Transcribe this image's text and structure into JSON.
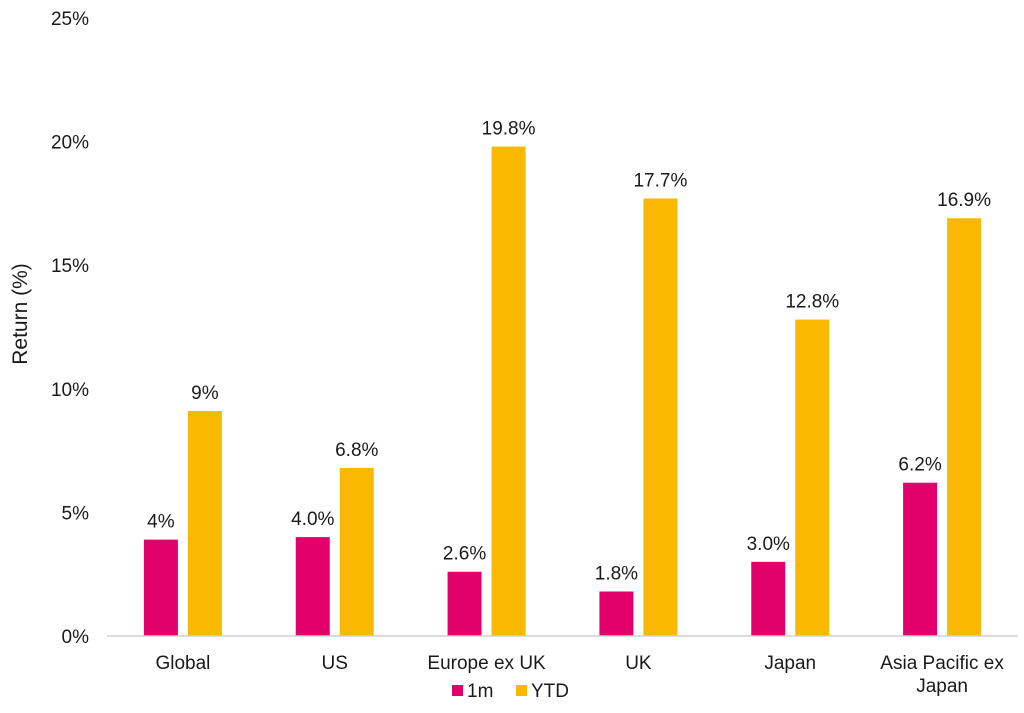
{
  "chart_data": {
    "type": "bar",
    "title": "",
    "xlabel": "",
    "ylabel": "Return (%)",
    "ylim": [
      0,
      25
    ],
    "yticks": [
      0,
      5,
      10,
      15,
      20,
      25
    ],
    "ytick_labels": [
      "0%",
      "5%",
      "10%",
      "15%",
      "20%",
      "25%"
    ],
    "grid": false,
    "legend_position": "bottom",
    "categories": [
      [
        "Global"
      ],
      [
        "US"
      ],
      [
        "Europe ex UK"
      ],
      [
        "UK"
      ],
      [
        "Japan"
      ],
      [
        "Asia Pacific ex",
        "Japan"
      ]
    ],
    "series": [
      {
        "name": "1m",
        "color": "#E2006A",
        "values": [
          3.9,
          4.0,
          2.6,
          1.8,
          3.0,
          6.2
        ],
        "labels": [
          "4%",
          "4.0%",
          "2.6%",
          "1.8%",
          "3.0%",
          "6.2%"
        ]
      },
      {
        "name": "YTD",
        "color": "#FBB800",
        "values": [
          9.1,
          6.8,
          19.8,
          17.7,
          12.8,
          16.9
        ],
        "labels": [
          "9%",
          "6.8%",
          "19.8%",
          "17.7%",
          "12.8%",
          "16.9%"
        ]
      }
    ]
  }
}
